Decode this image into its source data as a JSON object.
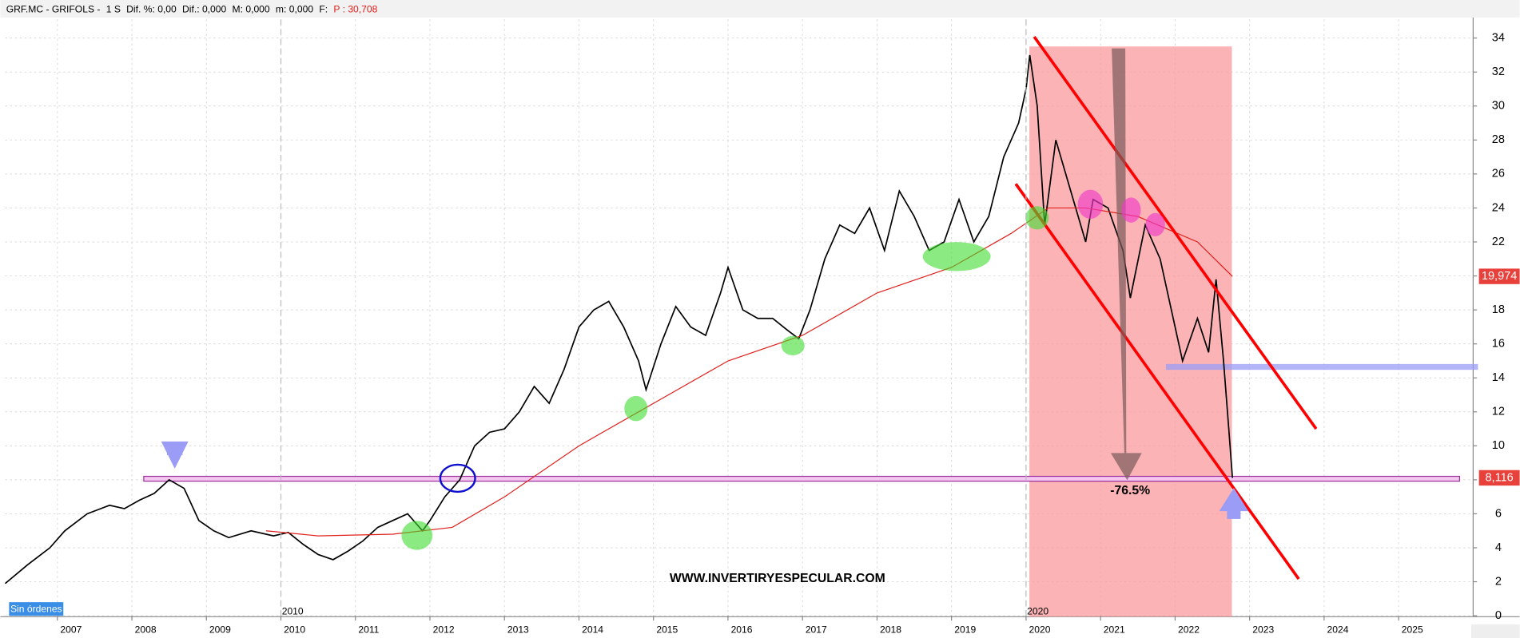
{
  "chart_data": {
    "type": "line",
    "header": [
      "GRF.MC - GRIFOLS -",
      "1 S",
      "Dif. %: 0,00",
      "Dif.: 0,000",
      "M: 0,000",
      "m: 0,000",
      "F:",
      "P : 30,708"
    ],
    "watermark": "WWW.INVERTIRYESPECULAR.COM",
    "annotation": "-76.5%",
    "orders_badge": "Sin órdenes",
    "xlim": [
      2006.3,
      2026
    ],
    "xticks": [
      2007,
      2008,
      2009,
      2010,
      2011,
      2012,
      2013,
      2014,
      2015,
      2016,
      2017,
      2018,
      2019,
      2020,
      2021,
      2022,
      2023,
      2024,
      2025
    ],
    "ylim": [
      0,
      35.1
    ],
    "yticks": [
      0,
      2,
      4,
      6,
      8,
      10,
      12,
      14,
      16,
      18,
      20,
      22,
      24,
      26,
      28,
      30,
      32,
      34
    ],
    "grid": true,
    "period_markers": [
      {
        "value": 2010,
        "label": "2010"
      },
      {
        "value": 2020,
        "label": "2020"
      }
    ],
    "series": [
      {
        "color": "#000000",
        "x": [
          2006.3,
          2006.6,
          2006.9,
          2007.1,
          2007.4,
          2007.7,
          2007.9,
          2008.1,
          2008.3,
          2008.5,
          2008.7,
          2008.9,
          2009.1,
          2009.3,
          2009.6,
          2009.9,
          2010.1,
          2010.3,
          2010.5,
          2010.7,
          2010.9,
          2011.1,
          2011.3,
          2011.5,
          2011.7,
          2011.9,
          2012.0,
          2012.2,
          2012.4,
          2012.6,
          2012.8,
          2013.0,
          2013.2,
          2013.4,
          2013.6,
          2013.8,
          2014.0,
          2014.2,
          2014.4,
          2014.6,
          2014.8,
          2014.9,
          2015.1,
          2015.3,
          2015.5,
          2015.7,
          2015.9,
          2016.0,
          2016.2,
          2016.4,
          2016.6,
          2016.8,
          2016.95,
          2017.1,
          2017.3,
          2017.5,
          2017.7,
          2017.9,
          2018.1,
          2018.3,
          2018.5,
          2018.7,
          2018.9,
          2019.1,
          2019.3,
          2019.5,
          2019.7,
          2019.9,
          2020.0,
          2020.05,
          2020.15,
          2020.25,
          2020.4,
          2020.6,
          2020.8,
          2020.9,
          2021.1,
          2021.3,
          2021.4,
          2021.6,
          2021.8,
          2022.0,
          2022.1,
          2022.3,
          2022.45,
          2022.55,
          2022.65,
          2022.72,
          2022.77
        ],
        "values": [
          1.9,
          3,
          4,
          5,
          6,
          6.5,
          6.3,
          6.8,
          7.2,
          8.0,
          7.5,
          5.6,
          5,
          4.6,
          5,
          4.7,
          4.9,
          4.2,
          3.6,
          3.3,
          3.8,
          4.4,
          5.2,
          5.6,
          6.0,
          5.0,
          5.6,
          7.0,
          8.0,
          10,
          10.8,
          11,
          12,
          13.5,
          12.5,
          14.5,
          17,
          18,
          18.5,
          17,
          15,
          13.3,
          16,
          18.2,
          17,
          16.5,
          19,
          20.5,
          18,
          17.5,
          17.5,
          16.8,
          16.3,
          18,
          21,
          23,
          22.5,
          24,
          21.5,
          25,
          23.5,
          21.5,
          22,
          24.5,
          22,
          23.5,
          27,
          29,
          31,
          33,
          30,
          23,
          28,
          25,
          22,
          24.5,
          24,
          21.5,
          18.7,
          23,
          21,
          17,
          15,
          17.5,
          15.5,
          19.8,
          15,
          11,
          8.116
        ]
      },
      {
        "color": "#e0201c",
        "x": [
          2009.8,
          2010.5,
          2011.5,
          2012.3,
          2013.0,
          2014.0,
          2015.0,
          2016.0,
          2017.0,
          2018.0,
          2019.0,
          2019.8,
          2020.3,
          2020.8,
          2021.5,
          2022.3,
          2022.77
        ],
        "values": [
          5,
          4.7,
          4.8,
          5.2,
          7,
          10,
          12.5,
          15,
          16.5,
          19,
          20.5,
          22.5,
          24,
          24,
          23.5,
          22,
          19.974
        ]
      }
    ],
    "last_value_labels": [
      {
        "value": 19.974,
        "label": "19,974"
      },
      {
        "value": 8.116,
        "label": "8,116"
      }
    ]
  }
}
